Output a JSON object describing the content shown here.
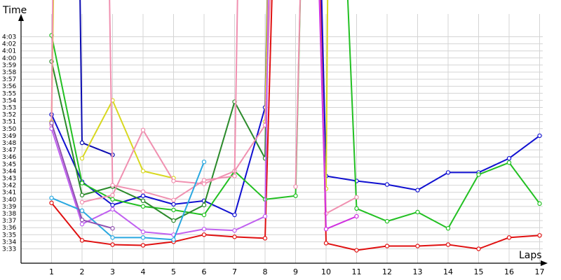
{
  "chart_data": {
    "type": "line",
    "ylabel": "Time",
    "xlabel": "Laps",
    "x_ticks": [
      1,
      2,
      3,
      4,
      5,
      6,
      7,
      8,
      9,
      10,
      11,
      12,
      13,
      14,
      15,
      16,
      17
    ],
    "xlim": [
      0,
      17
    ],
    "y_ticks": [
      "3:33",
      "3:34",
      "3:35",
      "3:36",
      "3:37",
      "3:38",
      "3:39",
      "3:40",
      "3:41",
      "3:42",
      "3:43",
      "3:44",
      "3:45",
      "3:46",
      "3:47",
      "3:48",
      "3:49",
      "3:50",
      "3:51",
      "3:52",
      "3:53",
      "3:54",
      "3:55",
      "3:56",
      "3:57",
      "3:58",
      "3:59",
      "4:00",
      "4:01",
      "4:02",
      "4:03"
    ],
    "ylim_seconds": [
      209,
      251
    ],
    "grid": true,
    "series": [
      {
        "color": "#e01010",
        "points": [
          [
            1,
            219.5
          ],
          [
            2,
            214.2
          ],
          [
            3,
            213.6
          ],
          [
            4,
            213.5
          ],
          [
            5,
            214.0
          ],
          [
            6,
            215.0
          ],
          [
            7,
            214.7
          ],
          [
            8,
            214.5
          ],
          [
            8.4,
            275
          ],
          [
            9.7,
            275
          ],
          [
            10,
            213.8
          ],
          [
            11,
            212.8
          ],
          [
            12,
            213.4
          ],
          [
            13,
            213.4
          ],
          [
            14,
            213.6
          ],
          [
            15,
            213.0
          ],
          [
            16,
            214.6
          ],
          [
            17,
            214.9
          ]
        ]
      },
      {
        "color": "#1010d0",
        "points": [
          [
            1,
            232.0
          ],
          [
            2,
            222.5
          ],
          [
            3,
            219.2
          ],
          [
            4,
            220.5
          ],
          [
            5,
            219.3
          ],
          [
            6,
            219.8
          ],
          [
            7,
            217.8
          ],
          [
            8,
            233.0
          ],
          [
            8.2,
            275
          ],
          [
            9.7,
            275
          ],
          [
            10,
            223.3
          ],
          [
            11,
            222.6
          ],
          [
            12,
            222.1
          ],
          [
            13,
            221.3
          ],
          [
            14,
            223.8
          ],
          [
            15,
            223.8
          ],
          [
            16,
            225.8
          ],
          [
            17,
            229.0
          ]
        ]
      },
      {
        "color": "#0a0ab0",
        "points": [
          [
            1.85,
            275
          ],
          [
            2,
            228.0
          ],
          [
            3,
            226.3
          ]
        ]
      },
      {
        "color": "#22c022",
        "points": [
          [
            1,
            243.2
          ],
          [
            2,
            222.3
          ],
          [
            3,
            220.0
          ],
          [
            4,
            219.0
          ],
          [
            5,
            218.5
          ],
          [
            6,
            217.8
          ],
          [
            7,
            224.0
          ],
          [
            8,
            220.0
          ],
          [
            9,
            220.5
          ],
          [
            9.3,
            275
          ],
          [
            10.45,
            275
          ],
          [
            11,
            218.7
          ],
          [
            12,
            216.9
          ],
          [
            13,
            218.2
          ],
          [
            14,
            215.9
          ],
          [
            15,
            223.5
          ],
          [
            16,
            225.2
          ],
          [
            17,
            219.4
          ]
        ]
      },
      {
        "color": "#2a8a2a",
        "points": [
          [
            1,
            239.5
          ],
          [
            2,
            220.6
          ],
          [
            3,
            221.8
          ],
          [
            4,
            219.8
          ],
          [
            5,
            217.0
          ],
          [
            6,
            219.2
          ],
          [
            7,
            233.8
          ],
          [
            8,
            225.8
          ],
          [
            8.2,
            275
          ]
        ]
      },
      {
        "color": "#d8d820",
        "points": [
          [
            1,
            231.0
          ],
          [
            1.15,
            275
          ]
        ]
      },
      {
        "color": "#d8d820",
        "points": [
          [
            2,
            225.8
          ],
          [
            3,
            234.0
          ],
          [
            4,
            224.0
          ],
          [
            5,
            223.0
          ]
        ]
      },
      {
        "color": "#d8d820",
        "points": [
          [
            8,
            231.0
          ],
          [
            8.2,
            275
          ]
        ]
      },
      {
        "color": "#d8d820",
        "points": [
          [
            10,
            221.5
          ],
          [
            10.1,
            275
          ]
        ]
      },
      {
        "color": "#f090b0",
        "points": [
          [
            1,
            230.5
          ],
          [
            1.1,
            275
          ]
        ]
      },
      {
        "color": "#f090b0",
        "points": [
          [
            2,
            219.6
          ],
          [
            3,
            220.6
          ],
          [
            4,
            229.8
          ],
          [
            5,
            222.6
          ],
          [
            6,
            222.2
          ],
          [
            7,
            224.0
          ],
          [
            8,
            230.5
          ],
          [
            8.4,
            275
          ]
        ]
      },
      {
        "color": "#f090b0",
        "points": [
          [
            2.8,
            275
          ],
          [
            3,
            222.0
          ],
          [
            4,
            221.1
          ],
          [
            5,
            219.9
          ],
          [
            6,
            222.7
          ],
          [
            7,
            223.3
          ],
          [
            7.2,
            275
          ]
        ]
      },
      {
        "color": "#f090b0",
        "points": [
          [
            9,
            221.8
          ],
          [
            9.3,
            275
          ]
        ]
      },
      {
        "color": "#f090b0",
        "points": [
          [
            9.6,
            275
          ],
          [
            10,
            218.0
          ],
          [
            11,
            220.3
          ]
        ]
      },
      {
        "color": "#d030e0",
        "points": [
          [
            9.6,
            275
          ],
          [
            10,
            215.8
          ],
          [
            11,
            217.6
          ]
        ]
      },
      {
        "color": "#c060f0",
        "points": [
          [
            1,
            230.0
          ],
          [
            2,
            216.5
          ],
          [
            3,
            218.6
          ],
          [
            4,
            215.4
          ],
          [
            5,
            215.0
          ],
          [
            6,
            215.8
          ],
          [
            7,
            215.6
          ],
          [
            8,
            217.6
          ],
          [
            8.2,
            275
          ]
        ]
      },
      {
        "color": "#2aa8e0",
        "points": [
          [
            1,
            220.2
          ],
          [
            2,
            218.4
          ],
          [
            3,
            214.6
          ],
          [
            4,
            214.6
          ],
          [
            5,
            214.3
          ],
          [
            6,
            225.3
          ]
        ]
      },
      {
        "color": "#9050b0",
        "points": [
          [
            1,
            230.8
          ],
          [
            2,
            217.1
          ],
          [
            3,
            215.9
          ]
        ]
      }
    ]
  }
}
